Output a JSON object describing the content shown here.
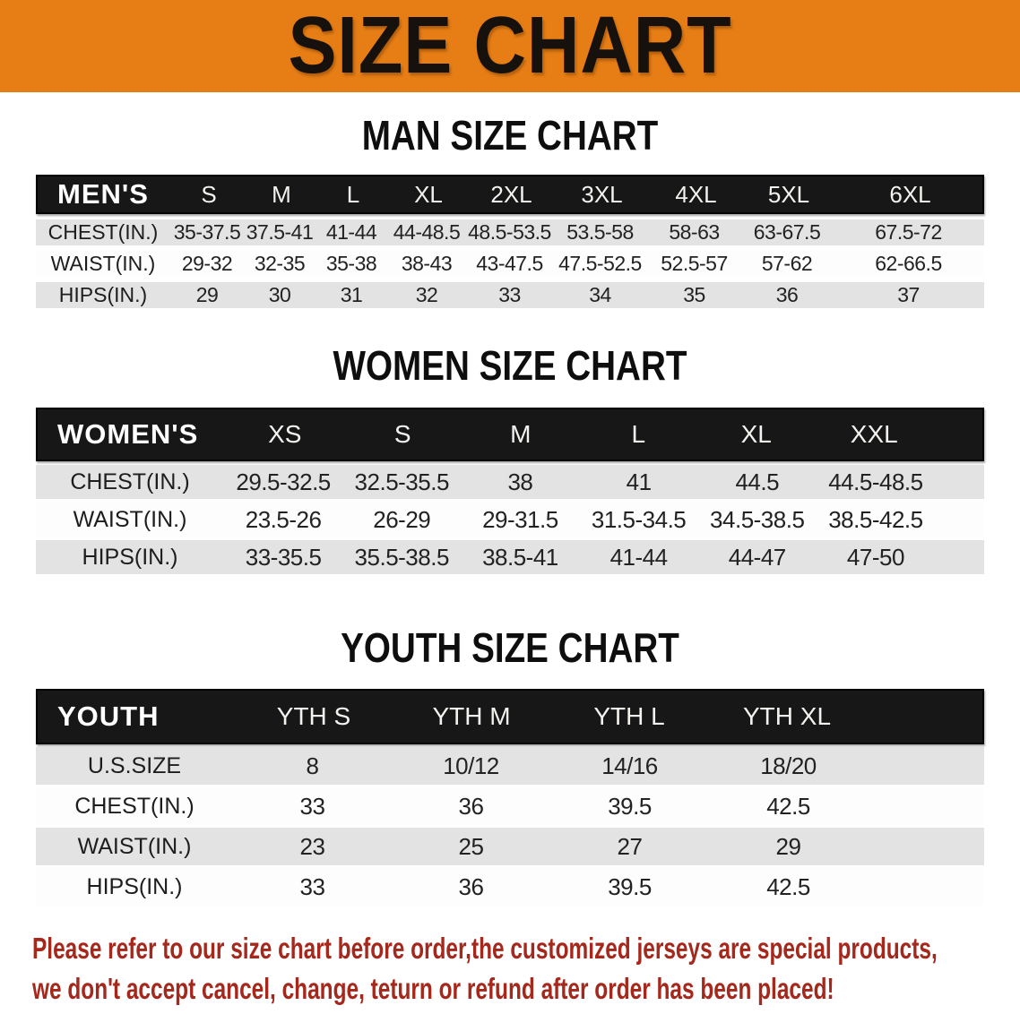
{
  "banner": {
    "title": "SIZE CHART",
    "bg_color": "#E67D15",
    "text_color": "#16110c"
  },
  "colors": {
    "table_header_bg": "#171717",
    "row_gray": "#E3E3E3",
    "row_white": "#FDFDFD",
    "disclaimer_red": "#A5281D"
  },
  "men": {
    "heading": "MAN SIZE CHART",
    "header": {
      "label": "MEN'S",
      "sizes": [
        "S",
        "M",
        "L",
        "XL",
        "2XL",
        "3XL",
        "4XL",
        "5XL",
        "6XL"
      ]
    },
    "rows": [
      {
        "label": "CHEST(IN.)",
        "values": [
          "35-37.5",
          "37.5-41",
          "41-44",
          "44-48.5",
          "48.5-53.5",
          "53.5-58",
          "58-63",
          "63-67.5",
          "67.5-72"
        ]
      },
      {
        "label": "WAIST(IN.)",
        "values": [
          "29-32",
          "32-35",
          "35-38",
          "38-43",
          "43-47.5",
          "47.5-52.5",
          "52.5-57",
          "57-62",
          "62-66.5"
        ]
      },
      {
        "label": "HIPS(IN.)",
        "values": [
          "29",
          "30",
          "31",
          "32",
          "33",
          "34",
          "35",
          "36",
          "37"
        ]
      }
    ]
  },
  "women": {
    "heading": "WOMEN SIZE CHART",
    "header": {
      "label": "WOMEN'S",
      "sizes": [
        "XS",
        "S",
        "M",
        "L",
        "XL",
        "XXL"
      ]
    },
    "rows": [
      {
        "label": "CHEST(IN.)",
        "values": [
          "29.5-32.5",
          "32.5-35.5",
          "38",
          "41",
          "44.5",
          "44.5-48.5"
        ]
      },
      {
        "label": "WAIST(IN.)",
        "values": [
          "23.5-26",
          "26-29",
          "29-31.5",
          "31.5-34.5",
          "34.5-38.5",
          "38.5-42.5"
        ]
      },
      {
        "label": "HIPS(IN.)",
        "values": [
          "33-35.5",
          "35.5-38.5",
          "38.5-41",
          "41-44",
          "44-47",
          "47-50"
        ]
      }
    ]
  },
  "youth": {
    "heading": "YOUTH SIZE CHART",
    "header": {
      "label": "YOUTH",
      "sizes": [
        "YTH S",
        "YTH M",
        "YTH L",
        "YTH XL"
      ]
    },
    "rows": [
      {
        "label": "U.S.SIZE",
        "values": [
          "8",
          "10/12",
          "14/16",
          "18/20"
        ]
      },
      {
        "label": "CHEST(IN.)",
        "values": [
          "33",
          "36",
          "39.5",
          "42.5"
        ]
      },
      {
        "label": "WAIST(IN.)",
        "values": [
          "23",
          "25",
          "27",
          "29"
        ]
      },
      {
        "label": "HIPS(IN.)",
        "values": [
          "33",
          "36",
          "39.5",
          "42.5"
        ]
      }
    ]
  },
  "disclaimer": {
    "line1": "Please refer to our size chart before order,the customized jerseys are special products,",
    "line2": "we don't accept cancel, change, teturn or refund after order has been placed!"
  }
}
